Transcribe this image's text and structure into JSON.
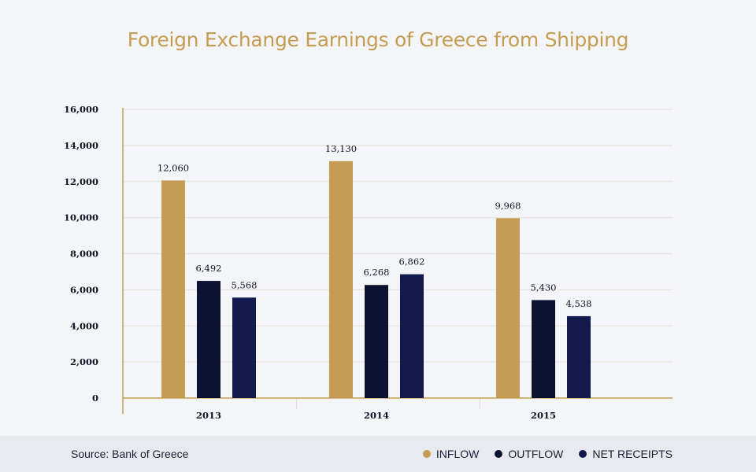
{
  "chart_data": {
    "type": "bar",
    "title": "Foreign Exchange Earnings of Greece from Shipping",
    "categories": [
      "2013",
      "2014",
      "2015"
    ],
    "series": [
      {
        "name": "INFLOW",
        "values": [
          12060,
          13130,
          9968
        ],
        "labels": [
          "12,060",
          "13,130",
          "9,968"
        ],
        "color": "#c59d52"
      },
      {
        "name": "OUTFLOW",
        "values": [
          6492,
          6268,
          5430
        ],
        "labels": [
          "6,492",
          "6,268",
          "5,430"
        ],
        "color": "#0b1230"
      },
      {
        "name": "NET RECEIPTS",
        "values": [
          5568,
          6862,
          4538
        ],
        "labels": [
          "5,568",
          "6,862",
          "4,538"
        ],
        "color": "#131a4e"
      }
    ],
    "yticks": [
      0,
      2000,
      4000,
      6000,
      8000,
      10000,
      12000,
      14000,
      16000
    ],
    "ytick_labels": [
      "0",
      "2,000",
      "4,000",
      "6,000",
      "8,000",
      "10,000",
      "12,000",
      "14,000",
      "16,000"
    ],
    "ylim": [
      0,
      16000
    ],
    "grid": true,
    "legend_position": "bottom-right",
    "axis_color": "#c59d52",
    "grid_color": "#e3e1d6"
  },
  "footer": {
    "source": "Source: Bank of Greece"
  }
}
